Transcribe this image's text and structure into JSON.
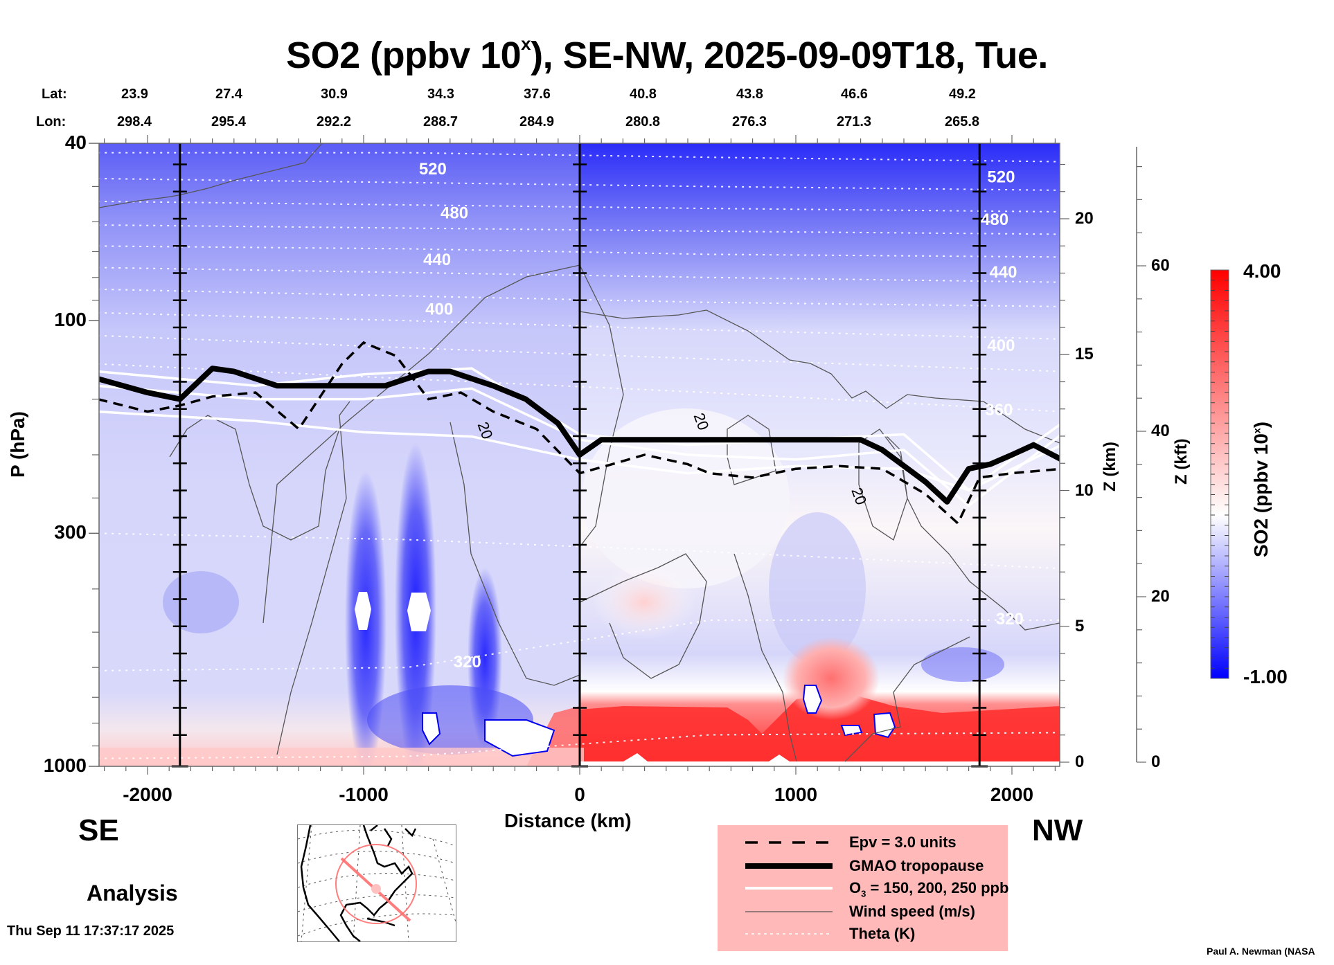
{
  "title": {
    "prefix": "SO2 (ppbv 10",
    "superscript": "x",
    "suffix": "), SE-NW, 2025-09-09T18, Tue."
  },
  "latlon": {
    "lat_label": "Lat:",
    "lon_label": "Lon:",
    "lat": [
      "23.9",
      "27.4",
      "30.9",
      "34.3",
      "37.6",
      "40.8",
      "43.8",
      "46.6",
      "49.2"
    ],
    "lon": [
      "298.4",
      "295.4",
      "292.2",
      "288.7",
      "284.9",
      "280.8",
      "276.3",
      "271.3",
      "265.8"
    ]
  },
  "directions": {
    "left": "SE",
    "right": "NW"
  },
  "mode_label": "Analysis",
  "timestamp": "Thu Sep 11 17:37:17 2025",
  "credit": "Paul A. Newman (NASA",
  "legend": {
    "items": [
      {
        "label": "Epv = 3.0 units",
        "style": "dashed-black"
      },
      {
        "label": "GMAO tropopause",
        "style": "thick-black"
      },
      {
        "label_main": "O",
        "label_sub": "3",
        "label_rest": " = 150, 200, 250 ppb",
        "style": "white"
      },
      {
        "label": "Wind speed (m/s)",
        "style": "thin-gray"
      },
      {
        "label": "Theta (K)",
        "style": "dotted-white"
      }
    ]
  },
  "colorbar": {
    "max_label": "4.00",
    "min_label": "-1.00",
    "title_prefix": "SO2 (ppbv 10",
    "title_sup": "x",
    "title_suffix": ")",
    "colors": {
      "low": "#0000ff",
      "mid": "#ffffff",
      "high": "#ff0000"
    }
  },
  "chart_data": {
    "type": "heatmap",
    "title": "SO2 (ppbv 10^x), SE-NW, 2025-09-09T18, Tue.",
    "xlabel": "Distance (km)",
    "ylabel": "P (hPa)",
    "y2label": "Z (km)",
    "y3label": "Z (kft)",
    "xlim": [
      -2230,
      2230
    ],
    "ylim": [
      1000,
      40
    ],
    "yscale": "log",
    "x_ticks": [
      -2000,
      -1000,
      0,
      1000,
      2000
    ],
    "x_tick_labels": [
      "-2000",
      "-1000",
      "0",
      "1000",
      "2000"
    ],
    "y_ticks": [
      40,
      100,
      300,
      1000
    ],
    "y_tick_labels": [
      "40",
      "100",
      "300",
      "1000"
    ],
    "z_km_ticks": [
      0,
      5,
      10,
      15,
      20
    ],
    "z_kft_ticks": [
      0,
      20,
      40,
      60
    ],
    "colorbar_range": [
      -1.0,
      4.0
    ],
    "profile_lines_km": [
      -1850,
      0,
      1850
    ],
    "theta_labels": [
      {
        "value": "520",
        "x_km": -680,
        "p": 47
      },
      {
        "value": "480",
        "x_km": -580,
        "p": 59
      },
      {
        "value": "440",
        "x_km": -660,
        "p": 75
      },
      {
        "value": "400",
        "x_km": -650,
        "p": 97
      },
      {
        "value": "320",
        "x_km": -520,
        "p": 600
      },
      {
        "value": "520",
        "x_km": 1950,
        "p": 49
      },
      {
        "value": "480",
        "x_km": 1920,
        "p": 61
      },
      {
        "value": "440",
        "x_km": 1960,
        "p": 80
      },
      {
        "value": "400",
        "x_km": 1950,
        "p": 117
      },
      {
        "value": "360",
        "x_km": 1940,
        "p": 163
      },
      {
        "value": "320",
        "x_km": 1990,
        "p": 480
      }
    ],
    "wind_labels": [
      {
        "value": "20",
        "x_km": -460,
        "p": 178
      },
      {
        "value": "20",
        "x_km": 540,
        "p": 170
      },
      {
        "value": "20",
        "x_km": 1270,
        "p": 250
      }
    ],
    "theta_levels_p": [
      {
        "k": 540,
        "p": [
          42,
          42,
          43,
          44
        ]
      },
      {
        "k": 520,
        "p": [
          48,
          49,
          50,
          51
        ]
      },
      {
        "k": 500,
        "p": [
          54,
          55,
          56,
          57
        ]
      },
      {
        "k": 480,
        "p": [
          61,
          62,
          63,
          64
        ]
      },
      {
        "k": 460,
        "p": [
          68,
          69,
          71,
          72
        ]
      },
      {
        "k": 440,
        "p": [
          76,
          78,
          80,
          82
        ]
      },
      {
        "k": 420,
        "p": [
          85,
          88,
          91,
          93
        ]
      },
      {
        "k": 400,
        "p": [
          96,
          100,
          105,
          110
        ]
      },
      {
        "k": 380,
        "p": [
          108,
          115,
          122,
          130
        ]
      },
      {
        "k": 360,
        "p": [
          125,
          135,
          145,
          160
        ]
      },
      {
        "k": 330,
        "p": [
          300,
          310,
          330,
          360
        ]
      },
      {
        "k": 320,
        "p": [
          610,
          600,
          470,
          470
        ]
      },
      {
        "k": 300,
        "p": [
          960,
          950,
          850,
          840
        ]
      }
    ],
    "tropopause": {
      "x_km": [
        -2230,
        -2000,
        -1850,
        -1700,
        -1600,
        -1400,
        -900,
        -700,
        -600,
        -400,
        -250,
        -100,
        0,
        100,
        400,
        800,
        1300,
        1400,
        1600,
        1700,
        1800,
        1900,
        2000,
        2100,
        2230
      ],
      "p": [
        135,
        145,
        150,
        128,
        130,
        140,
        140,
        130,
        130,
        140,
        150,
        170,
        200,
        185,
        185,
        185,
        185,
        195,
        230,
        255,
        215,
        210,
        200,
        190,
        205
      ]
    },
    "epv": {
      "x_km": [
        -2230,
        -2000,
        -1850,
        -1700,
        -1500,
        -1300,
        -1100,
        -1000,
        -850,
        -700,
        -550,
        -400,
        -200,
        0,
        150,
        300,
        500,
        600,
        800,
        1000,
        1200,
        1400,
        1600,
        1750,
        1850,
        2000,
        2230
      ],
      "p": [
        150,
        160,
        155,
        148,
        145,
        175,
        125,
        112,
        120,
        150,
        145,
        160,
        175,
        220,
        210,
        200,
        210,
        220,
        225,
        215,
        212,
        215,
        245,
        285,
        225,
        220,
        215
      ]
    },
    "ozone_lines": [
      {
        "ppb": 150,
        "x_km": [
          -2230,
          -1500,
          -1000,
          -500,
          0,
          500,
          1000,
          1500,
          1800,
          2230
        ],
        "p": [
          160,
          168,
          178,
          182,
          205,
          220,
          212,
          215,
          240,
          190
        ]
      },
      {
        "ppb": 200,
        "x_km": [
          -2230,
          -1500,
          -1000,
          -500,
          0,
          500,
          1000,
          1500,
          1800,
          2230
        ],
        "p": [
          140,
          150,
          150,
          142,
          185,
          200,
          205,
          195,
          260,
          180
        ]
      },
      {
        "ppb": 250,
        "x_km": [
          -2230,
          -1500,
          -1000,
          -500,
          0,
          500,
          1000,
          1500,
          1800,
          2230
        ],
        "p": [
          130,
          140,
          132,
          128,
          180,
          190,
          185,
          180,
          240,
          170
        ]
      }
    ]
  }
}
